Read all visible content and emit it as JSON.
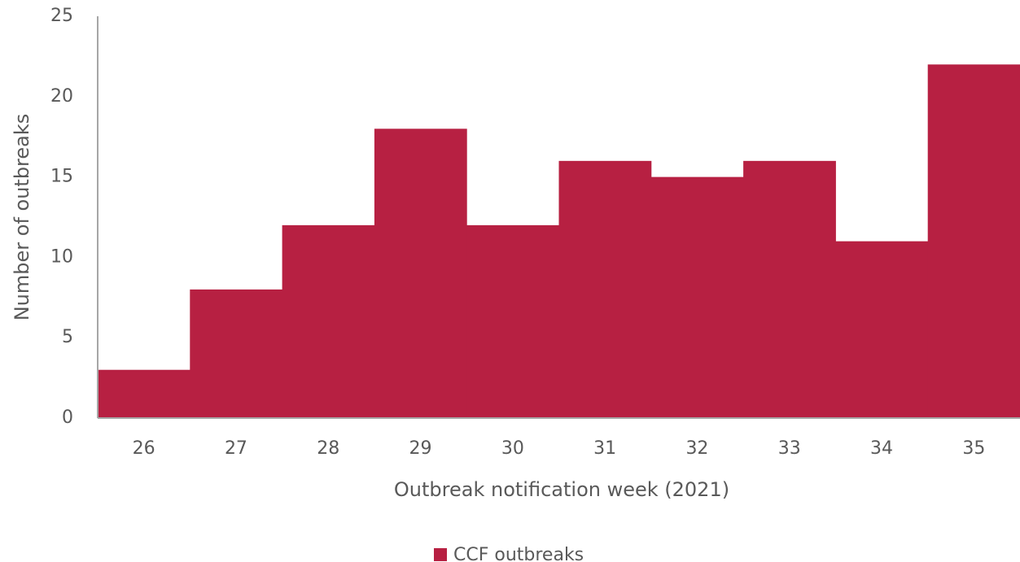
{
  "chart_data": {
    "type": "bar",
    "x_label": "Outbreak notification week (2021)",
    "y_label": "Number of outbreaks",
    "categories": [
      "26",
      "27",
      "28",
      "29",
      "30",
      "31",
      "32",
      "33",
      "34",
      "35"
    ],
    "series": [
      {
        "name": "CCF outbreaks",
        "color": "#b72042",
        "values": [
          3,
          8,
          12,
          18,
          12,
          16,
          15,
          16,
          11,
          22
        ]
      }
    ],
    "ylim": [
      0,
      25
    ],
    "yticks": [
      0,
      5,
      10,
      15,
      20,
      25
    ],
    "grid": false,
    "legend": "bottom"
  }
}
